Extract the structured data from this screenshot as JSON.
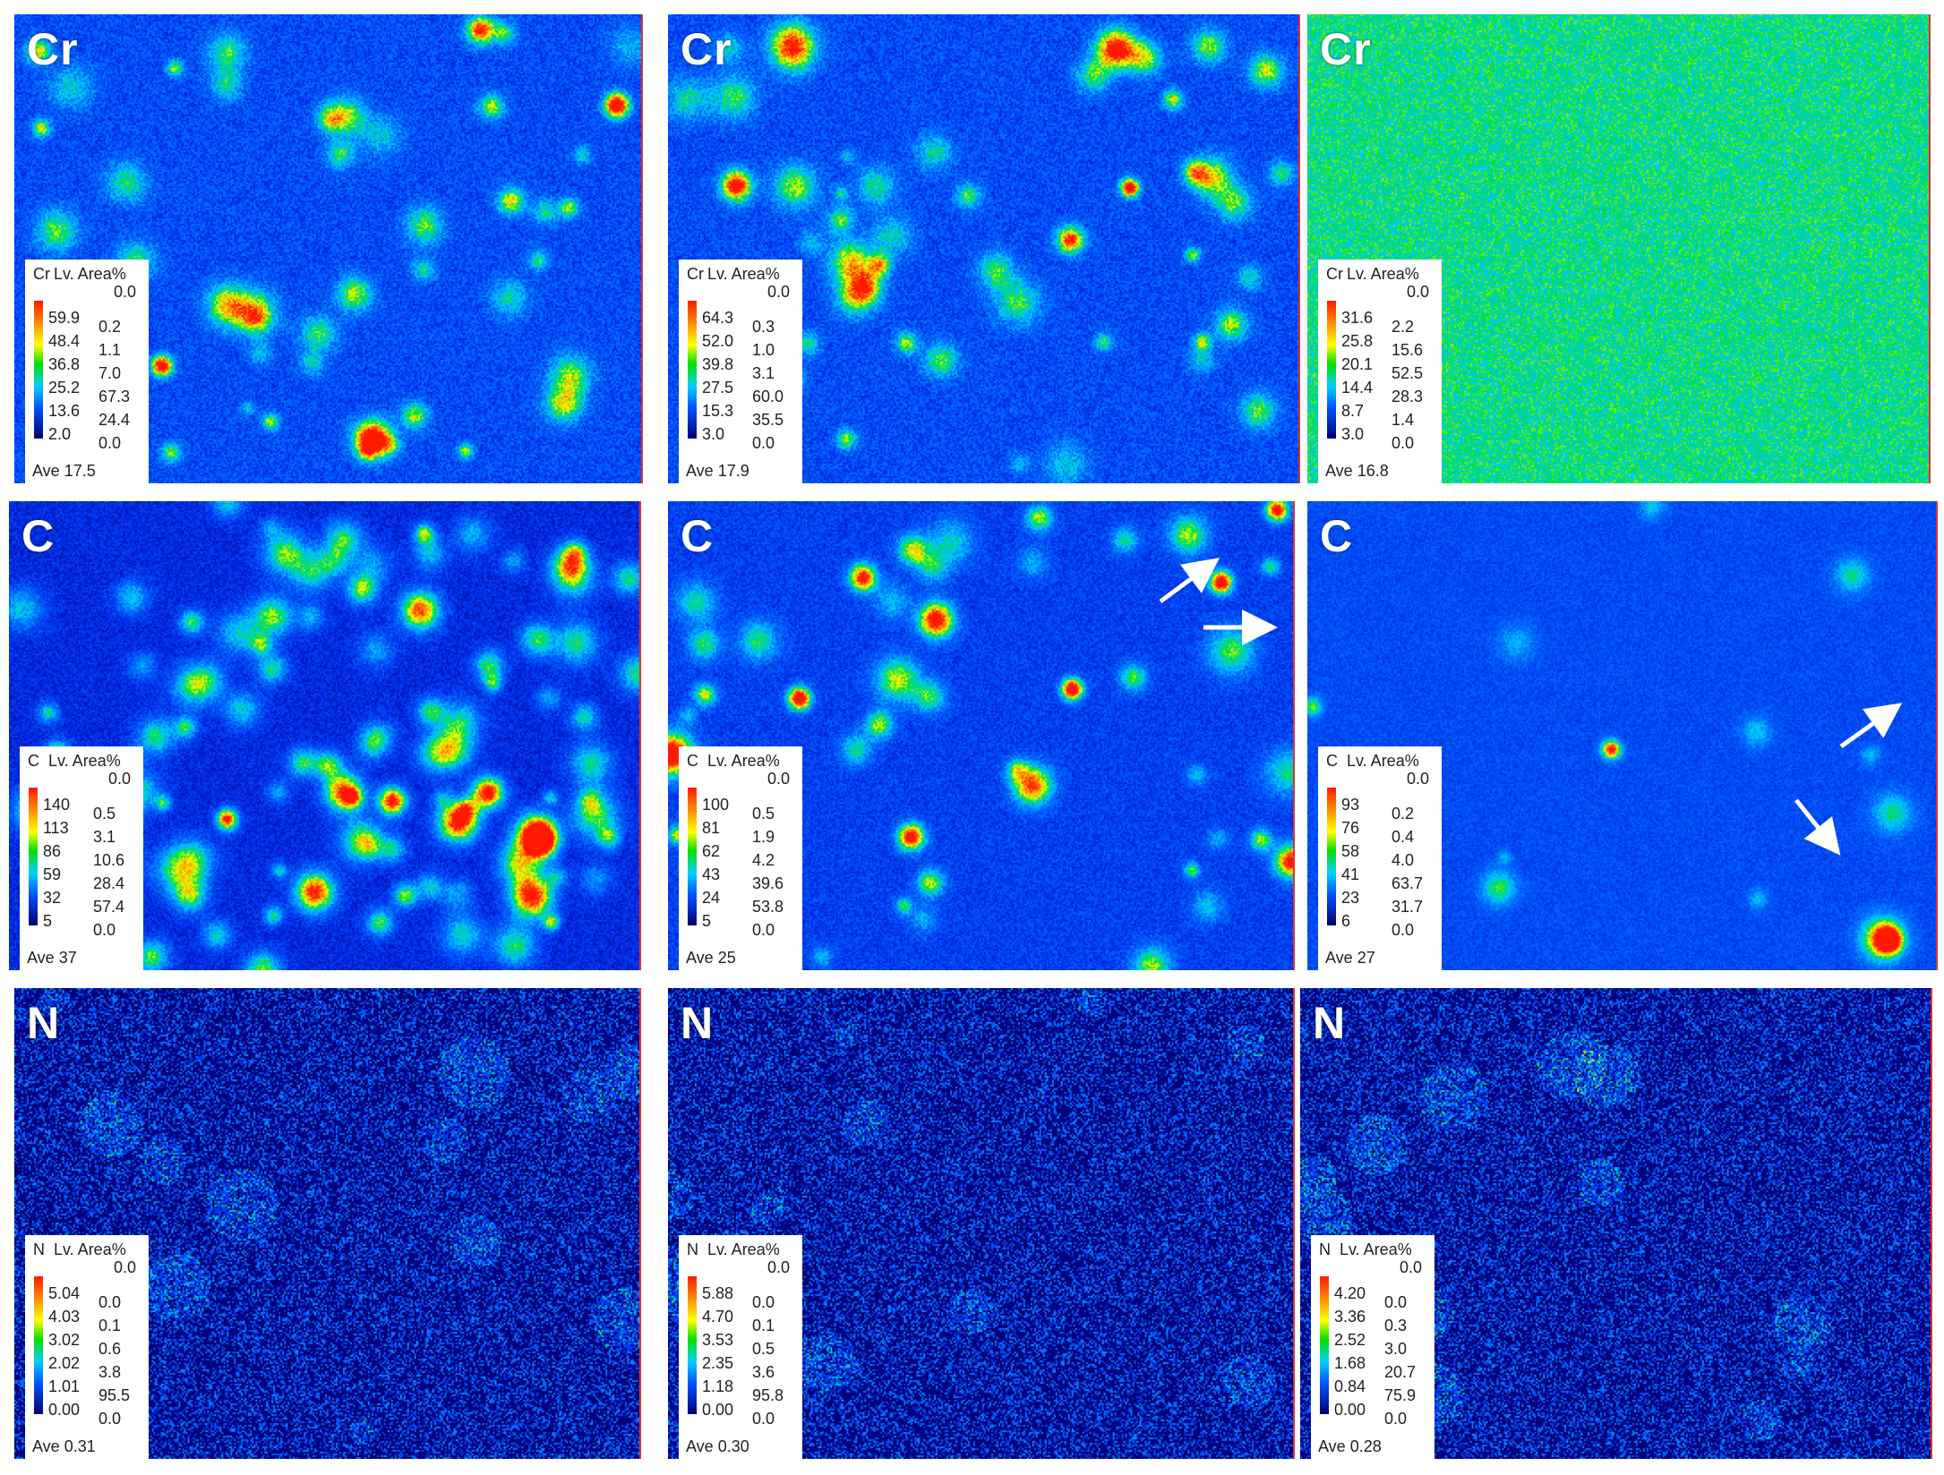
{
  "panels": [
    {
      "element": "Cr",
      "legend": {
        "element": "Cr",
        "title": "Lv. Area%",
        "top_value": "0.0",
        "levels": [
          "59.9",
          "48.4",
          "36.8",
          "25.2",
          "13.6",
          "2.0"
        ],
        "areas": [
          "0.2",
          "1.1",
          "7.0",
          "67.3",
          "24.4",
          "0.0"
        ],
        "average": "Ave 17.5"
      }
    },
    {
      "element": "Cr",
      "legend": {
        "element": "Cr",
        "title": "Lv. Area%",
        "top_value": "0.0",
        "levels": [
          "64.3",
          "52.0",
          "39.8",
          "27.5",
          "15.3",
          "3.0"
        ],
        "areas": [
          "0.3",
          "1.0",
          "3.1",
          "60.0",
          "35.5",
          "0.0"
        ],
        "average": "Ave 17.9"
      }
    },
    {
      "element": "Cr",
      "legend": {
        "element": "Cr",
        "title": "Lv. Area%",
        "top_value": "0.0",
        "levels": [
          "31.6",
          "25.8",
          "20.1",
          "14.4",
          "8.7",
          "3.0"
        ],
        "areas": [
          "2.2",
          "15.6",
          "52.5",
          "28.3",
          "1.4",
          "0.0"
        ],
        "average": "Ave 16.8"
      }
    },
    {
      "element": "C",
      "legend": {
        "element": "C",
        "title": "Lv. Area%",
        "top_value": "0.0",
        "levels": [
          "140",
          "113",
          "86",
          "59",
          "32",
          "5"
        ],
        "areas": [
          "0.5",
          "3.1",
          "10.6",
          "28.4",
          "57.4",
          "0.0"
        ],
        "average": "Ave 37"
      }
    },
    {
      "element": "C",
      "legend": {
        "element": "C",
        "title": "Lv. Area%",
        "top_value": "0.0",
        "levels": [
          "100",
          "81",
          "62",
          "43",
          "24",
          "5"
        ],
        "areas": [
          "0.5",
          "1.9",
          "4.2",
          "39.6",
          "53.8",
          "0.0"
        ],
        "average": "Ave 25"
      }
    },
    {
      "element": "C",
      "legend": {
        "element": "C",
        "title": "Lv. Area%",
        "top_value": "0.0",
        "levels": [
          "93",
          "76",
          "58",
          "41",
          "23",
          "6"
        ],
        "areas": [
          "0.2",
          "0.4",
          "4.0",
          "63.7",
          "31.7",
          "0.0"
        ],
        "average": "Ave 27"
      }
    },
    {
      "element": "N",
      "legend": {
        "element": "N",
        "title": "Lv. Area%",
        "top_value": "0.0",
        "levels": [
          "5.04",
          "4.03",
          "3.02",
          "2.02",
          "1.01",
          "0.00"
        ],
        "areas": [
          "0.0",
          "0.1",
          "0.6",
          "3.8",
          "95.5",
          "0.0"
        ],
        "average": "Ave 0.31"
      }
    },
    {
      "element": "N",
      "legend": {
        "element": "N",
        "title": "Lv. Area%",
        "top_value": "0.0",
        "levels": [
          "5.88",
          "4.70",
          "3.53",
          "2.35",
          "1.18",
          "0.00"
        ],
        "areas": [
          "0.0",
          "0.1",
          "0.5",
          "3.6",
          "95.8",
          "0.0"
        ],
        "average": "Ave 0.30"
      }
    },
    {
      "element": "N",
      "legend": {
        "element": "N",
        "title": "Lv. Area%",
        "top_value": "0.0",
        "levels": [
          "4.20",
          "3.36",
          "2.52",
          "1.68",
          "0.84",
          "0.00"
        ],
        "areas": [
          "0.0",
          "0.3",
          "3.0",
          "20.7",
          "75.9",
          "0.0"
        ],
        "average": "Ave 0.28"
      }
    }
  ],
  "colors": {
    "scale": [
      "#000070",
      "#0050ff",
      "#00d0ff",
      "#00e000",
      "#ffff00",
      "#ff9900",
      "#ff1a00"
    ],
    "panel_border": "#e03030",
    "arrow": "#ffffff"
  },
  "annotations": [
    "arrow-icon",
    "arrow-icon",
    "arrow-icon",
    "arrow-icon"
  ]
}
